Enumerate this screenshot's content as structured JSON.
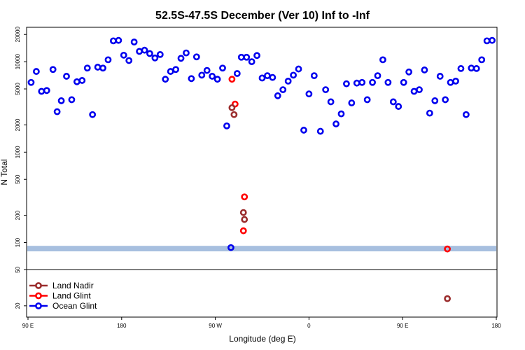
{
  "chart_data": {
    "type": "scatter",
    "title": "52.5S-47.5S December (Ver 10)   Inf to -Inf",
    "xlabel": "Longitude (deg E)",
    "ylabel": "N Total",
    "x_ticks": [
      {
        "value": 90,
        "label": "90 E"
      },
      {
        "value": 180,
        "label": "180"
      },
      {
        "value": 270,
        "label": "90 W"
      },
      {
        "value": 360,
        "label": "0"
      },
      {
        "value": 450,
        "label": "90 E"
      },
      {
        "value": 540,
        "label": "180"
      }
    ],
    "xlim": [
      90,
      540
    ],
    "y_scale": "log",
    "ylim": [
      15,
      24000
    ],
    "y_ticks": [
      {
        "value": 20,
        "label": "20"
      },
      {
        "value": 50,
        "label": "50"
      },
      {
        "value": 100,
        "label": "100"
      },
      {
        "value": 200,
        "label": "200"
      },
      {
        "value": 500,
        "label": "500"
      },
      {
        "value": 1000,
        "label": "1000"
      },
      {
        "value": 2000,
        "label": "2000"
      },
      {
        "value": 5000,
        "label": "5000"
      },
      {
        "value": 10000,
        "label": "10000"
      },
      {
        "value": 20000,
        "label": "20000"
      }
    ],
    "legend_divider_y": 50,
    "reference_band": {
      "y_low": 80,
      "y_high": 92,
      "color": "#a7bfdf"
    },
    "legend": {
      "position": "bottom-left"
    },
    "series": [
      {
        "name": "Land Nadir",
        "color": "#9b2d2d",
        "points": [
          [
            286,
            3100
          ],
          [
            288,
            2600
          ],
          [
            297,
            215
          ],
          [
            298,
            180
          ],
          [
            493,
            24
          ]
        ]
      },
      {
        "name": "Land Glint",
        "color": "#ff0000",
        "points": [
          [
            286,
            6400
          ],
          [
            289,
            3400
          ],
          [
            297,
            135
          ],
          [
            298,
            320
          ],
          [
            493,
            85
          ]
        ]
      },
      {
        "name": "Ocean Glint",
        "color": "#0000ee",
        "points": [
          [
            93,
            5900
          ],
          [
            98,
            7800
          ],
          [
            103,
            4700
          ],
          [
            108,
            4800
          ],
          [
            114,
            8200
          ],
          [
            118,
            2800
          ],
          [
            122,
            3700
          ],
          [
            127,
            6900
          ],
          [
            132,
            3800
          ],
          [
            137,
            6000
          ],
          [
            142,
            6200
          ],
          [
            147,
            8500
          ],
          [
            152,
            2600
          ],
          [
            157,
            8700
          ],
          [
            162,
            8500
          ],
          [
            167,
            10500
          ],
          [
            172,
            17000
          ],
          [
            177,
            17200
          ],
          [
            182,
            11800
          ],
          [
            187,
            10300
          ],
          [
            192,
            16500
          ],
          [
            197,
            13000
          ],
          [
            202,
            13400
          ],
          [
            207,
            12300
          ],
          [
            212,
            11000
          ],
          [
            217,
            12000
          ],
          [
            222,
            6400
          ],
          [
            227,
            7800
          ],
          [
            232,
            8200
          ],
          [
            237,
            10900
          ],
          [
            242,
            12500
          ],
          [
            247,
            6500
          ],
          [
            252,
            11300
          ],
          [
            257,
            7100
          ],
          [
            262,
            8000
          ],
          [
            267,
            6900
          ],
          [
            272,
            6400
          ],
          [
            277,
            8500
          ],
          [
            281,
            1950
          ],
          [
            285,
            88
          ],
          [
            291,
            7400
          ],
          [
            295,
            11200
          ],
          [
            300,
            11200
          ],
          [
            305,
            10000
          ],
          [
            310,
            11700
          ],
          [
            315,
            6600
          ],
          [
            320,
            7000
          ],
          [
            325,
            6700
          ],
          [
            330,
            4200
          ],
          [
            335,
            4900
          ],
          [
            340,
            6100
          ],
          [
            345,
            7100
          ],
          [
            350,
            8300
          ],
          [
            355,
            1750
          ],
          [
            360,
            4400
          ],
          [
            365,
            7000
          ],
          [
            371,
            1700
          ],
          [
            376,
            4900
          ],
          [
            381,
            3600
          ],
          [
            386,
            2050
          ],
          [
            391,
            2650
          ],
          [
            396,
            5700
          ],
          [
            401,
            3500
          ],
          [
            406,
            5800
          ],
          [
            411,
            5900
          ],
          [
            416,
            3800
          ],
          [
            421,
            5900
          ],
          [
            426,
            7000
          ],
          [
            431,
            10500
          ],
          [
            436,
            5900
          ],
          [
            441,
            3600
          ],
          [
            446,
            3200
          ],
          [
            451,
            5900
          ],
          [
            456,
            7700
          ],
          [
            461,
            4700
          ],
          [
            466,
            4900
          ],
          [
            471,
            8100
          ],
          [
            476,
            2700
          ],
          [
            481,
            3700
          ],
          [
            486,
            6900
          ],
          [
            491,
            3800
          ],
          [
            496,
            5900
          ],
          [
            501,
            6100
          ],
          [
            506,
            8400
          ],
          [
            511,
            2600
          ],
          [
            516,
            8500
          ],
          [
            521,
            8400
          ],
          [
            526,
            10500
          ],
          [
            531,
            17000
          ],
          [
            536,
            17200
          ]
        ]
      }
    ]
  }
}
